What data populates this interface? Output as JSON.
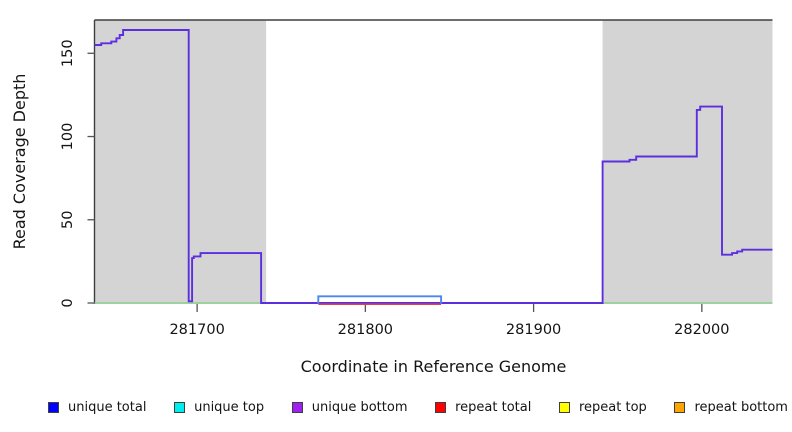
{
  "chart_data": {
    "type": "line",
    "title": "",
    "xlabel": "Coordinate in Reference Genome",
    "ylabel": "Read Coverage Depth",
    "xlim": [
      281639,
      282042
    ],
    "ylim": [
      0,
      170
    ],
    "x_ticks": [
      281700,
      281800,
      281900,
      282000
    ],
    "y_ticks": [
      0,
      50,
      100,
      150
    ],
    "grid": false,
    "legend_position": "bottom",
    "shaded_regions": [
      {
        "name": "shaded-region-left",
        "x0": 281639,
        "x1": 281741,
        "color": "#d4d4d4"
      },
      {
        "name": "shaded-region-right",
        "x0": 281941,
        "x1": 282042,
        "color": "#d4d4d4"
      }
    ],
    "series": [
      {
        "name": "baseline-green-left",
        "color": "#8ecf8e",
        "width": 1.4,
        "points": [
          [
            281639,
            0
          ],
          [
            281741,
            0
          ]
        ]
      },
      {
        "name": "baseline-green-right",
        "color": "#8ecf8e",
        "width": 1.4,
        "points": [
          [
            281941,
            0
          ],
          [
            282042,
            0
          ]
        ]
      },
      {
        "name": "unique-bottom-coverage",
        "color": "#5b2fe0",
        "width": 1.9,
        "points": [
          [
            281639,
            155
          ],
          [
            281643,
            155
          ],
          [
            281643,
            156
          ],
          [
            281649,
            156
          ],
          [
            281649,
            157
          ],
          [
            281652,
            157
          ],
          [
            281652,
            159
          ],
          [
            281654,
            159
          ],
          [
            281654,
            161
          ],
          [
            281656,
            161
          ],
          [
            281656,
            164
          ],
          [
            281695,
            164
          ],
          [
            281695,
            1
          ],
          [
            281697,
            1
          ],
          [
            281697,
            27
          ],
          [
            281698,
            27
          ],
          [
            281698,
            28
          ],
          [
            281702,
            28
          ],
          [
            281702,
            30
          ],
          [
            281738,
            30
          ],
          [
            281738,
            0
          ],
          [
            281941,
            0
          ],
          [
            281941,
            85
          ],
          [
            281957,
            85
          ],
          [
            281957,
            86
          ],
          [
            281961,
            86
          ],
          [
            281961,
            88
          ],
          [
            281997,
            88
          ],
          [
            281997,
            116
          ],
          [
            281999,
            116
          ],
          [
            281999,
            118
          ],
          [
            282012,
            118
          ],
          [
            282012,
            29
          ],
          [
            282018,
            29
          ],
          [
            282018,
            30
          ],
          [
            282021,
            30
          ],
          [
            282021,
            31
          ],
          [
            282024,
            31
          ],
          [
            282024,
            32
          ],
          [
            282042,
            32
          ]
        ]
      },
      {
        "name": "repeat-total-coverage",
        "color": "#e0404e",
        "width": 1.5,
        "points": [
          [
            281772,
            -0.8
          ],
          [
            281845,
            -0.8
          ]
        ]
      },
      {
        "name": "unique-total-coverage",
        "color": "#4b87ee",
        "width": 1.9,
        "points": [
          [
            281772,
            -0.3
          ],
          [
            281772,
            4
          ],
          [
            281845,
            4
          ],
          [
            281845,
            -0.3
          ]
        ]
      }
    ],
    "legend": [
      {
        "label": "unique total",
        "color": "#0000ff"
      },
      {
        "label": "unique top",
        "color": "#00eeee"
      },
      {
        "label": "unique bottom",
        "color": "#a020f0"
      },
      {
        "label": "repeat total",
        "color": "#ff0000"
      },
      {
        "label": "repeat top",
        "color": "#ffff00"
      },
      {
        "label": "repeat bottom",
        "color": "#ffa500"
      }
    ],
    "frame_color": "#3f3f3f",
    "tick_color": "#555555"
  }
}
